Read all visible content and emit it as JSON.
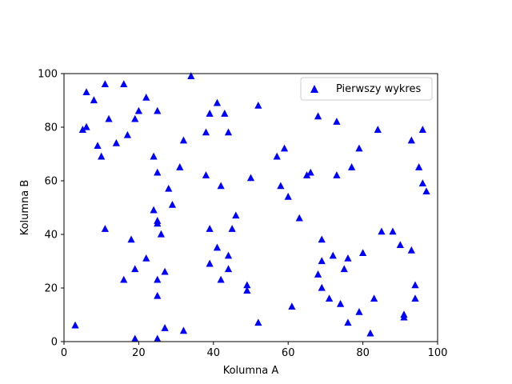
{
  "chart_data": {
    "type": "scatter",
    "xlabel": "Kolumna A",
    "ylabel": "Kolumna B",
    "xlim": [
      0,
      100
    ],
    "ylim": [
      0,
      100
    ],
    "xticks": [
      "0",
      "20",
      "40",
      "60",
      "80",
      "100"
    ],
    "yticks": [
      "0",
      "20",
      "40",
      "60",
      "80",
      "100"
    ],
    "grid": false,
    "legend_position": "top-right",
    "series": [
      {
        "name": "Pierwszy wykres",
        "marker": "triangle-up",
        "color": "#0000ff",
        "points": [
          [
            3,
            6
          ],
          [
            5,
            79
          ],
          [
            6,
            93
          ],
          [
            6,
            80
          ],
          [
            8,
            90
          ],
          [
            9,
            73
          ],
          [
            10,
            69
          ],
          [
            11,
            96
          ],
          [
            11,
            42
          ],
          [
            12,
            83
          ],
          [
            14,
            74
          ],
          [
            16,
            96
          ],
          [
            16,
            23
          ],
          [
            17,
            77
          ],
          [
            18,
            38
          ],
          [
            19,
            83
          ],
          [
            19,
            27
          ],
          [
            19,
            1
          ],
          [
            20,
            86
          ],
          [
            22,
            91
          ],
          [
            22,
            31
          ],
          [
            24,
            69
          ],
          [
            24,
            49
          ],
          [
            25,
            86
          ],
          [
            25,
            63
          ],
          [
            25,
            45
          ],
          [
            25,
            44
          ],
          [
            25,
            23
          ],
          [
            25,
            17
          ],
          [
            25,
            1
          ],
          [
            26,
            40
          ],
          [
            27,
            26
          ],
          [
            27,
            5
          ],
          [
            28,
            57
          ],
          [
            29,
            51
          ],
          [
            31,
            65
          ],
          [
            32,
            75
          ],
          [
            32,
            4
          ],
          [
            34,
            99
          ],
          [
            38,
            78
          ],
          [
            38,
            62
          ],
          [
            39,
            85
          ],
          [
            39,
            42
          ],
          [
            39,
            29
          ],
          [
            41,
            89
          ],
          [
            41,
            35
          ],
          [
            42,
            58
          ],
          [
            42,
            23
          ],
          [
            43,
            85
          ],
          [
            44,
            78
          ],
          [
            44,
            32
          ],
          [
            44,
            27
          ],
          [
            45,
            42
          ],
          [
            46,
            47
          ],
          [
            49,
            21
          ],
          [
            49,
            19
          ],
          [
            50,
            61
          ],
          [
            52,
            88
          ],
          [
            52,
            7
          ],
          [
            57,
            69
          ],
          [
            58,
            58
          ],
          [
            59,
            72
          ],
          [
            60,
            54
          ],
          [
            61,
            13
          ],
          [
            63,
            46
          ],
          [
            65,
            62
          ],
          [
            66,
            63
          ],
          [
            68,
            84
          ],
          [
            68,
            25
          ],
          [
            69,
            38
          ],
          [
            69,
            30
          ],
          [
            69,
            20
          ],
          [
            71,
            16
          ],
          [
            72,
            32
          ],
          [
            73,
            82
          ],
          [
            73,
            62
          ],
          [
            74,
            14
          ],
          [
            75,
            27
          ],
          [
            76,
            31
          ],
          [
            76,
            7
          ],
          [
            77,
            65
          ],
          [
            79,
            72
          ],
          [
            79,
            11
          ],
          [
            80,
            33
          ],
          [
            82,
            3
          ],
          [
            83,
            16
          ],
          [
            84,
            79
          ],
          [
            85,
            41
          ],
          [
            88,
            41
          ],
          [
            90,
            36
          ],
          [
            91,
            10
          ],
          [
            91,
            9
          ],
          [
            93,
            75
          ],
          [
            93,
            34
          ],
          [
            94,
            21
          ],
          [
            94,
            16
          ],
          [
            95,
            65
          ],
          [
            96,
            79
          ],
          [
            96,
            59
          ],
          [
            97,
            56
          ]
        ]
      }
    ]
  }
}
